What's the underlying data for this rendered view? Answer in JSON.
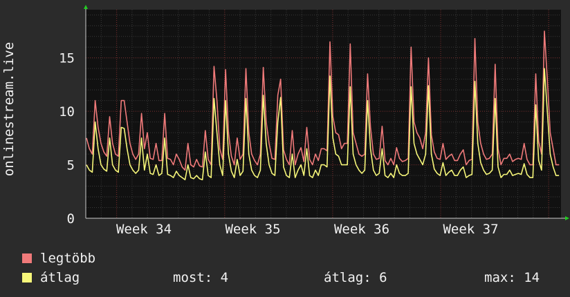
{
  "chart_data": {
    "type": "line",
    "title": "",
    "ylabel": "onlinestream.live",
    "xlabel": "",
    "ylim": [
      0,
      19.5
    ],
    "yticks": [
      0,
      5,
      10,
      15
    ],
    "x_ticks": [
      "Week 34",
      "Week 35",
      "Week 36",
      "Week 37"
    ],
    "grid": true,
    "colors": {
      "max": "#f07a7a",
      "avg": "#f7f77a",
      "background": "#111111",
      "grid_major": "#7a2b2b",
      "grid_minor": "#3a3a3a",
      "axis_marker": "#22cc22"
    },
    "series": [
      {
        "name": "legtöbb",
        "color": "#f07a7a",
        "values": [
          7.5,
          6.5,
          6,
          11,
          8.5,
          7,
          6.2,
          5.8,
          9.5,
          7,
          6,
          5.8,
          11,
          11,
          9,
          7,
          6,
          5.5,
          6,
          9.8,
          6.5,
          8,
          5.6,
          5.5,
          7,
          5.4,
          5.4,
          9.8,
          5.6,
          5.5,
          5,
          6,
          5.5,
          4.8,
          4.5,
          7,
          5,
          4.8,
          5.5,
          4.9,
          4.8,
          8.2,
          5.5,
          5,
          14.2,
          11,
          6.5,
          5.5,
          13.9,
          8,
          5.8,
          5,
          7.5,
          5.5,
          6,
          14,
          8,
          6,
          5.4,
          5,
          6,
          14.1,
          9,
          7,
          5.6,
          5.5,
          11.5,
          13,
          6.4,
          5.5,
          5,
          8.2,
          5,
          6,
          6.6,
          5.3,
          8.5,
          5.5,
          5,
          6,
          5.4,
          6.5,
          6.5,
          6.3,
          16.5,
          9.5,
          8,
          7.8,
          6.5,
          7,
          7,
          16.3,
          8,
          7,
          6,
          5.8,
          6,
          13.5,
          8.5,
          6,
          5.5,
          5.6,
          8.6,
          5.4,
          5,
          5.6,
          5,
          6.6,
          5.6,
          5.3,
          5.4,
          5.6,
          16,
          9,
          8,
          7.5,
          6.5,
          8,
          15,
          7.8,
          6.2,
          5.6,
          5.5,
          7,
          5.5,
          5.8,
          6,
          5.4,
          5.4,
          6,
          6.4,
          5,
          5.4,
          5.5,
          16.8,
          9,
          7,
          6,
          5.5,
          5.6,
          6,
          14.4,
          6.5,
          5,
          5.6,
          5.6,
          6,
          5.3,
          5.5,
          5.6,
          5.5,
          7,
          5.5,
          5,
          5,
          13.5,
          7.2,
          6,
          17.5,
          13,
          8,
          6.5,
          5,
          5
        ]
      },
      {
        "name": "átlag",
        "color": "#f7f77a",
        "values": [
          5,
          4.5,
          4.3,
          9,
          6.5,
          5,
          4.6,
          4.4,
          7.5,
          5,
          4.5,
          4.3,
          8.5,
          8.4,
          6.5,
          5,
          4.5,
          4.2,
          4.5,
          7.5,
          4.5,
          6,
          4.2,
          4.1,
          5,
          4,
          4.2,
          7.5,
          4.1,
          4,
          3.8,
          4.4,
          4,
          3.8,
          3.6,
          5,
          3.8,
          3.7,
          4,
          3.7,
          3.6,
          6.2,
          4,
          3.8,
          11.2,
          8,
          5,
          4,
          11,
          6,
          4.4,
          3.8,
          5.5,
          4,
          4.4,
          11.2,
          6,
          4.5,
          4,
          3.8,
          4.5,
          11.5,
          7,
          5,
          4.2,
          4,
          9,
          11.3,
          4.8,
          4,
          3.8,
          6,
          3.8,
          4.5,
          5,
          4,
          6.5,
          4,
          3.8,
          4.5,
          4,
          5,
          5,
          4.8,
          13.3,
          7.5,
          6,
          5.8,
          5,
          5,
          5,
          12.3,
          6,
          5,
          4.5,
          4.2,
          4.5,
          11,
          6.5,
          4.5,
          4,
          4.2,
          6.5,
          4,
          3.8,
          4.2,
          3.8,
          5,
          4.2,
          4,
          4,
          4.2,
          12.3,
          7,
          6,
          5.5,
          5,
          6,
          12.4,
          6,
          4.6,
          4.2,
          4,
          5.2,
          4,
          4.3,
          4.5,
          4,
          4,
          4.5,
          4.8,
          3.8,
          4,
          4.1,
          12.8,
          7,
          5.2,
          4.5,
          4.1,
          4.2,
          4.5,
          11.2,
          4.8,
          3.8,
          4.1,
          4.1,
          4.5,
          4,
          4.1,
          4.2,
          4.1,
          5.1,
          4.1,
          3.8,
          3.8,
          10.6,
          5.4,
          4.5,
          14,
          10,
          6,
          4.8,
          4,
          4
        ]
      }
    ]
  },
  "legend": {
    "max_label": "legtöbb",
    "avg_label": "átlag"
  },
  "stats": {
    "now": "most: 4",
    "avg": "átlag: 6",
    "max": "max: 14"
  }
}
